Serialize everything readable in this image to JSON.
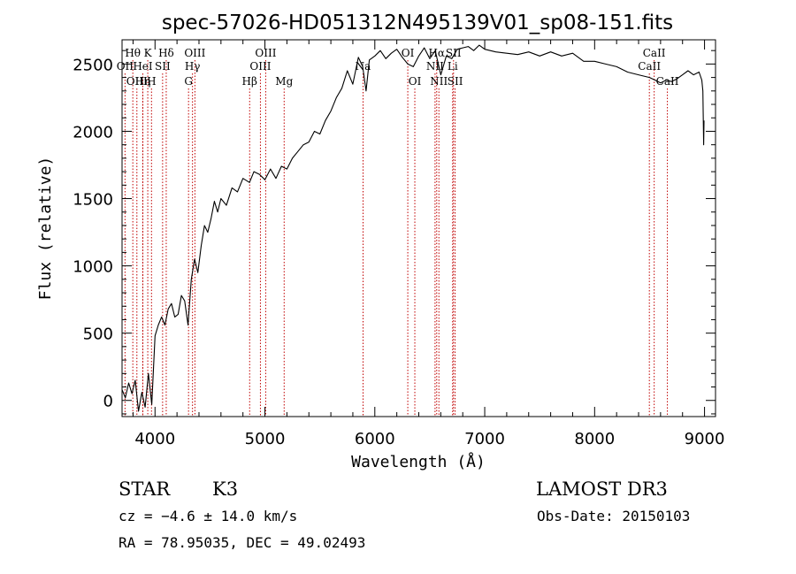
{
  "chart_data": {
    "type": "line",
    "title": "spec-57026-HD051312N495139V01_sp08-151.fits",
    "xlabel": "Wavelength (Å)",
    "ylabel": "Flux (relative)",
    "xlim": [
      3700,
      9100
    ],
    "ylim": [
      -120,
      2680
    ],
    "x_ticks": [
      4000,
      5000,
      6000,
      7000,
      8000,
      9000
    ],
    "x_tick_labels": [
      "4000",
      "5000",
      "6000",
      "7000",
      "8000",
      "9000"
    ],
    "y_ticks": [
      0,
      500,
      1000,
      1500,
      2000,
      2500
    ],
    "y_tick_labels": [
      "0",
      "500",
      "1000",
      "1500",
      "2000",
      "2500"
    ],
    "grid": false,
    "legend": "none",
    "series": [
      {
        "name": "spectrum",
        "color": "#000000",
        "x": [
          3700,
          3730,
          3760,
          3790,
          3820,
          3850,
          3880,
          3910,
          3940,
          3970,
          4000,
          4030,
          4060,
          4090,
          4120,
          4150,
          4180,
          4210,
          4240,
          4270,
          4300,
          4330,
          4360,
          4390,
          4420,
          4450,
          4480,
          4510,
          4540,
          4570,
          4600,
          4650,
          4700,
          4750,
          4800,
          4860,
          4900,
          4950,
          5000,
          5050,
          5100,
          5150,
          5200,
          5250,
          5300,
          5350,
          5400,
          5450,
          5500,
          5550,
          5600,
          5650,
          5700,
          5750,
          5800,
          5850,
          5890,
          5920,
          5950,
          6000,
          6050,
          6100,
          6150,
          6200,
          6250,
          6300,
          6350,
          6400,
          6450,
          6500,
          6550,
          6600,
          6650,
          6700,
          6750,
          6800,
          6850,
          6900,
          6950,
          7000,
          7100,
          7200,
          7300,
          7400,
          7500,
          7600,
          7700,
          7800,
          7900,
          8000,
          8100,
          8200,
          8300,
          8400,
          8500,
          8550,
          8600,
          8650,
          8700,
          8750,
          8800,
          8850,
          8900,
          8950,
          8975,
          8985,
          8992,
          8995
        ],
        "y": [
          80,
          20,
          130,
          50,
          150,
          -80,
          60,
          -50,
          200,
          -30,
          480,
          560,
          620,
          560,
          680,
          720,
          620,
          640,
          780,
          740,
          560,
          900,
          1050,
          950,
          1150,
          1300,
          1250,
          1350,
          1480,
          1400,
          1500,
          1450,
          1580,
          1550,
          1650,
          1620,
          1700,
          1680,
          1640,
          1720,
          1650,
          1740,
          1720,
          1800,
          1850,
          1900,
          1920,
          2000,
          1980,
          2080,
          2150,
          2250,
          2320,
          2450,
          2350,
          2550,
          2480,
          2300,
          2530,
          2560,
          2600,
          2540,
          2580,
          2610,
          2550,
          2500,
          2480,
          2560,
          2620,
          2540,
          2600,
          2420,
          2560,
          2540,
          2610,
          2620,
          2630,
          2600,
          2640,
          2610,
          2590,
          2580,
          2570,
          2590,
          2560,
          2590,
          2560,
          2580,
          2520,
          2520,
          2500,
          2480,
          2440,
          2420,
          2400,
          2380,
          2360,
          2380,
          2370,
          2390,
          2420,
          2450,
          2420,
          2440,
          2380,
          2300,
          1900,
          2080
        ]
      }
    ],
    "line_markers": [
      {
        "label": "Hθ",
        "wl": 3798,
        "row": 1
      },
      {
        "label": "OII",
        "wl": 3727,
        "row": 2
      },
      {
        "label": "OIII",
        "wl": 3835,
        "row": 3
      },
      {
        "label": "K",
        "wl": 3934,
        "row": 1
      },
      {
        "label": "HeI",
        "wl": 3889,
        "row": 2
      },
      {
        "label": "Hη",
        "wl": 3889,
        "row": 3
      },
      {
        "label": "H",
        "wl": 3968,
        "row": 3
      },
      {
        "label": "Hδ",
        "wl": 4102,
        "row": 1
      },
      {
        "label": "SII",
        "wl": 4069,
        "row": 2
      },
      {
        "label": "OIII",
        "wl": 4363,
        "row": 1
      },
      {
        "label": "Hγ",
        "wl": 4341,
        "row": 2
      },
      {
        "label": "G",
        "wl": 4305,
        "row": 3
      },
      {
        "label": "Hβ",
        "wl": 4861,
        "row": 3
      },
      {
        "label": "OIII",
        "wl": 5007,
        "row": 1
      },
      {
        "label": "OIII",
        "wl": 4959,
        "row": 2
      },
      {
        "label": "Mg",
        "wl": 5175,
        "row": 3
      },
      {
        "label": "Na",
        "wl": 5893,
        "row": 2
      },
      {
        "label": "OI",
        "wl": 6300,
        "row": 1
      },
      {
        "label": "OI",
        "wl": 6364,
        "row": 3
      },
      {
        "label": "Hα",
        "wl": 6563,
        "row": 1
      },
      {
        "label": "NII",
        "wl": 6548,
        "row": 2
      },
      {
        "label": "NII",
        "wl": 6583,
        "row": 3
      },
      {
        "label": "SII",
        "wl": 6716,
        "row": 1
      },
      {
        "label": "Li",
        "wl": 6708,
        "row": 2
      },
      {
        "label": "SII",
        "wl": 6731,
        "row": 3
      },
      {
        "label": "CaII",
        "wl": 8542,
        "row": 1
      },
      {
        "label": "CaII",
        "wl": 8498,
        "row": 2
      },
      {
        "label": "CaII",
        "wl": 8662,
        "row": 3
      }
    ]
  },
  "info": {
    "class_label": "STAR",
    "subclass": "K3",
    "survey": "LAMOST DR3",
    "cz": "cz = −4.6 ± 14.0 km/s",
    "obs_date": "Obs-Date: 20150103",
    "coords": "RA =  78.95035, DEC =  49.02493"
  },
  "colors": {
    "axis": "#000000",
    "spectrum": "#000000",
    "marker_line": "#c00000"
  }
}
